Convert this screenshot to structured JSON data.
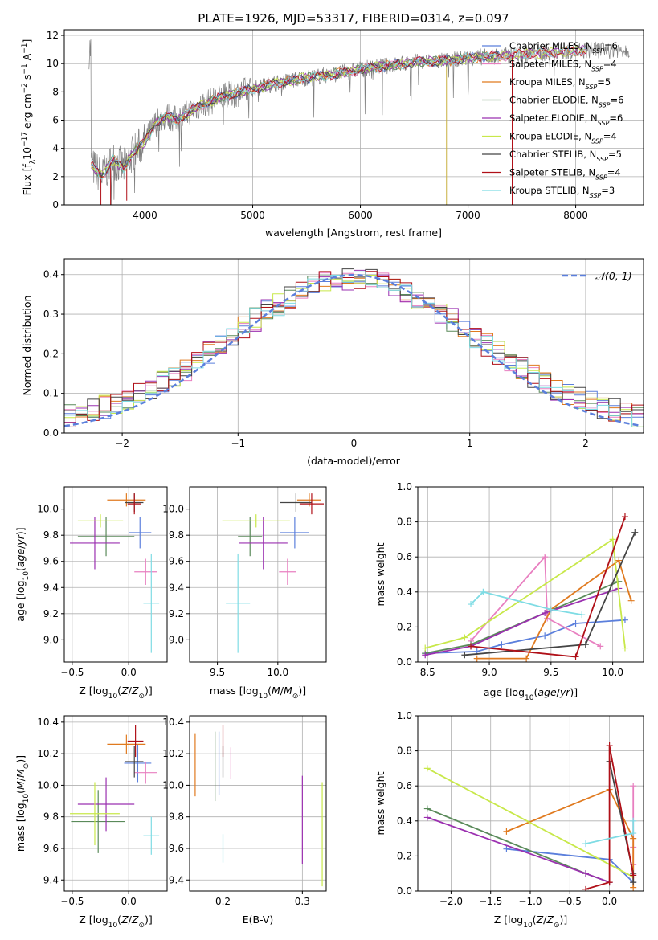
{
  "title": "PLATE=1926, MJD=53317, FIBERID=0314, z=0.097",
  "colors": {
    "Chabrier MILES": "#5b7fdc",
    "Salpeter MILES": "#e87fc0",
    "Kroupa MILES": "#e07a1f",
    "Chabrier ELODIE": "#5a8a5a",
    "Salpeter ELODIE": "#9b30b0",
    "Kroupa ELODIE": "#c8e84a",
    "Chabrier STELIB": "#444444",
    "Salpeter STELIB": "#b01018",
    "Kroupa STELIB": "#7fdce4",
    "data": "#808080",
    "gaussian": "#5b7fdc"
  },
  "chart_data": [
    {
      "id": "spectrum",
      "type": "line",
      "xlabel": "wavelength [Angstrom, rest frame]",
      "ylabel": "Flux [f",
      "xlim": [
        3250,
        8630
      ],
      "ylim": [
        0,
        12.4
      ],
      "xticks": [
        4000,
        5000,
        6000,
        7000,
        8000
      ],
      "yticks": [
        0,
        2,
        4,
        6,
        8,
        10,
        12
      ],
      "legend_position": "right",
      "legend": [
        {
          "name": "Chabrier MILES",
          "nssp": "6"
        },
        {
          "name": "Salpeter MILES",
          "nssp": "4"
        },
        {
          "name": "Kroupa MILES",
          "nssp": "5"
        },
        {
          "name": "Chabrier ELODIE",
          "nssp": "6"
        },
        {
          "name": "Salpeter ELODIE",
          "nssp": "6"
        },
        {
          "name": "Kroupa ELODIE",
          "nssp": "4"
        },
        {
          "name": "Chabrier STELIB",
          "nssp": "5"
        },
        {
          "name": "Salpeter STELIB",
          "nssp": "4"
        },
        {
          "name": "Kroupa STELIB",
          "nssp": "3"
        }
      ],
      "continuum": {
        "x": [
          3500,
          3600,
          3700,
          3800,
          3900,
          4000,
          4100,
          4200,
          4300,
          4500,
          4700,
          4900,
          5000,
          5200,
          5500,
          5800,
          6000,
          6300,
          6500,
          6800,
          7000,
          7200,
          7400,
          7600,
          7800,
          8000,
          8300,
          8500
        ],
        "y": [
          2.8,
          2.0,
          3.2,
          2.6,
          3.8,
          4.5,
          5.8,
          6.3,
          6.0,
          7.0,
          7.6,
          8.0,
          8.2,
          8.6,
          9.0,
          9.3,
          9.6,
          9.9,
          10.1,
          10.2,
          10.4,
          10.5,
          10.6,
          10.7,
          10.8,
          10.9,
          11.0,
          11.0
        ]
      }
    },
    {
      "id": "residuals",
      "type": "step",
      "xlabel": "(data-model)/error",
      "ylabel": "Normed distribution",
      "xlim": [
        -2.5,
        2.5
      ],
      "ylim": [
        0,
        0.44
      ],
      "xticks": [
        -2,
        -1,
        0,
        1,
        2
      ],
      "yticks": [
        0.0,
        0.1,
        0.2,
        0.3,
        0.4
      ],
      "legend_label": "𝒩(0, 1)",
      "legend_position": "top-right",
      "bin_width": 0.1
    },
    {
      "id": "age-vs-Z",
      "type": "errorbar",
      "xlabel": "Z [log",
      "ylabel": "age  [log",
      "xlim": [
        -0.57,
        0.34
      ],
      "ylim": [
        8.83,
        10.17
      ],
      "xticks": [
        -0.5,
        0.0
      ],
      "yticks": [
        9.0,
        9.2,
        9.4,
        9.6,
        9.8,
        10.0
      ],
      "points": [
        {
          "m": "Chabrier MILES",
          "x": 0.1,
          "xe": 0.1,
          "y": 9.82,
          "ye": 0.12
        },
        {
          "m": "Salpeter MILES",
          "x": 0.15,
          "xe": 0.1,
          "y": 9.52,
          "ye": 0.1
        },
        {
          "m": "Kroupa MILES",
          "x": -0.02,
          "xe": 0.17,
          "y": 10.07,
          "ye": 0.05
        },
        {
          "m": "Chabrier ELODIE",
          "x": -0.2,
          "xe": 0.25,
          "y": 9.79,
          "ye": 0.15
        },
        {
          "m": "Salpeter ELODIE",
          "x": -0.3,
          "xe": 0.22,
          "y": 9.74,
          "ye": 0.2
        },
        {
          "m": "Kroupa ELODIE",
          "x": -0.25,
          "xe": 0.2,
          "y": 9.91,
          "ye": 0.05
        },
        {
          "m": "Chabrier STELIB",
          "x": 0.05,
          "xe": 0.08,
          "y": 10.05,
          "ye": 0.07
        },
        {
          "m": "Salpeter STELIB",
          "x": 0.05,
          "xe": 0.06,
          "y": 10.04,
          "ye": 0.08
        },
        {
          "m": "Kroupa STELIB",
          "x": 0.2,
          "xe": 0.07,
          "y": 9.28,
          "ye": 0.38
        }
      ]
    },
    {
      "id": "age-vs-mass",
      "type": "errorbar",
      "xlabel": "mass [log",
      "ylabel": "",
      "xlim": [
        9.27,
        10.4
      ],
      "ylim": [
        8.83,
        10.17
      ],
      "xticks": [
        9.5,
        10.0
      ],
      "yticks": [
        9.0,
        9.2,
        9.4,
        9.6,
        9.8,
        10.0
      ],
      "points": [
        {
          "m": "Chabrier MILES",
          "x": 10.14,
          "xe": 0.12,
          "y": 9.82,
          "ye": 0.12
        },
        {
          "m": "Salpeter MILES",
          "x": 10.08,
          "xe": 0.07,
          "y": 9.52,
          "ye": 0.1
        },
        {
          "m": "Kroupa MILES",
          "x": 10.26,
          "xe": 0.1,
          "y": 10.07,
          "ye": 0.05
        },
        {
          "m": "Chabrier ELODIE",
          "x": 9.77,
          "xe": 0.1,
          "y": 9.79,
          "ye": 0.15
        },
        {
          "m": "Salpeter ELODIE",
          "x": 9.88,
          "xe": 0.2,
          "y": 9.74,
          "ye": 0.2
        },
        {
          "m": "Kroupa ELODIE",
          "x": 9.82,
          "xe": 0.28,
          "y": 9.91,
          "ye": 0.05
        },
        {
          "m": "Chabrier STELIB",
          "x": 10.15,
          "xe": 0.13,
          "y": 10.05,
          "ye": 0.07
        },
        {
          "m": "Salpeter STELIB",
          "x": 10.28,
          "xe": 0.1,
          "y": 10.04,
          "ye": 0.08
        },
        {
          "m": "Kroupa STELIB",
          "x": 9.67,
          "xe": 0.1,
          "y": 9.28,
          "ye": 0.38
        }
      ]
    },
    {
      "id": "mass-weight-vs-age",
      "type": "line",
      "xlabel": "age  [log",
      "ylabel": "mass weight",
      "xlim": [
        8.42,
        10.25
      ],
      "ylim": [
        0,
        1.0
      ],
      "xticks": [
        8.5,
        9.0,
        9.5,
        10.0
      ],
      "yticks": [
        0.0,
        0.2,
        0.4,
        0.6,
        0.8,
        1.0
      ],
      "series": [
        {
          "m": "Chabrier MILES",
          "x": [
            8.48,
            8.9,
            9.1,
            9.45,
            9.7,
            10.1
          ],
          "y": [
            0.05,
            0.06,
            0.1,
            0.15,
            0.22,
            0.24
          ]
        },
        {
          "m": "Salpeter MILES",
          "x": [
            8.85,
            9.45,
            9.47,
            9.9
          ],
          "y": [
            0.12,
            0.6,
            0.25,
            0.09
          ]
        },
        {
          "m": "Kroupa MILES",
          "x": [
            8.9,
            9.3,
            9.5,
            10.05,
            10.15
          ],
          "y": [
            0.02,
            0.02,
            0.3,
            0.58,
            0.35
          ]
        },
        {
          "m": "Chabrier ELODIE",
          "x": [
            8.48,
            8.85,
            10.05
          ],
          "y": [
            0.05,
            0.1,
            0.46
          ]
        },
        {
          "m": "Salpeter ELODIE",
          "x": [
            8.48,
            8.85,
            9.45,
            10.05
          ],
          "y": [
            0.04,
            0.09,
            0.28,
            0.42
          ]
        },
        {
          "m": "Kroupa ELODIE",
          "x": [
            8.48,
            8.8,
            10.0,
            10.1
          ],
          "y": [
            0.08,
            0.14,
            0.7,
            0.08
          ]
        },
        {
          "m": "Chabrier STELIB",
          "x": [
            8.8,
            9.78,
            10.18
          ],
          "y": [
            0.04,
            0.1,
            0.74
          ]
        },
        {
          "m": "Salpeter STELIB",
          "x": [
            8.85,
            9.7,
            10.1
          ],
          "y": [
            0.09,
            0.03,
            0.83
          ]
        },
        {
          "m": "Kroupa STELIB",
          "x": [
            8.85,
            8.95,
            9.5,
            9.75
          ],
          "y": [
            0.33,
            0.4,
            0.3,
            0.27
          ]
        }
      ]
    },
    {
      "id": "mass-vs-Z",
      "type": "errorbar",
      "xlabel": "Z [log",
      "ylabel": "mass [log",
      "xlim": [
        -0.57,
        0.34
      ],
      "ylim": [
        9.33,
        10.44
      ],
      "xticks": [
        -0.5,
        0.0
      ],
      "yticks": [
        9.4,
        9.6,
        9.8,
        10.0,
        10.2,
        10.4
      ],
      "points": [
        {
          "m": "Chabrier MILES",
          "x": 0.08,
          "xe": 0.12,
          "y": 10.14,
          "ye": 0.12
        },
        {
          "m": "Salpeter MILES",
          "x": 0.15,
          "xe": 0.1,
          "y": 10.08,
          "ye": 0.07
        },
        {
          "m": "Kroupa MILES",
          "x": -0.02,
          "xe": 0.17,
          "y": 10.26,
          "ye": 0.06
        },
        {
          "m": "Chabrier ELODIE",
          "x": -0.27,
          "xe": 0.24,
          "y": 9.77,
          "ye": 0.2
        },
        {
          "m": "Salpeter ELODIE",
          "x": -0.2,
          "xe": 0.25,
          "y": 9.88,
          "ye": 0.17
        },
        {
          "m": "Kroupa ELODIE",
          "x": -0.3,
          "xe": 0.22,
          "y": 9.82,
          "ye": 0.2
        },
        {
          "m": "Chabrier STELIB",
          "x": 0.05,
          "xe": 0.08,
          "y": 10.15,
          "ye": 0.1
        },
        {
          "m": "Salpeter STELIB",
          "x": 0.06,
          "xe": 0.07,
          "y": 10.28,
          "ye": 0.1
        },
        {
          "m": "Kroupa STELIB",
          "x": 0.2,
          "xe": 0.07,
          "y": 9.68,
          "ye": 0.12
        }
      ]
    },
    {
      "id": "mass-vs-EBV",
      "type": "errorbar",
      "xlabel": "E(B-V)",
      "ylabel": "",
      "xlim": [
        0.158,
        0.33
      ],
      "ylim": [
        9.33,
        10.44
      ],
      "xticks": [
        0.2,
        0.3
      ],
      "yticks": [
        9.4,
        9.6,
        9.8,
        10.0,
        10.2,
        10.4
      ],
      "points": [
        {
          "m": "Chabrier MILES",
          "x": 0.195,
          "xe": 0,
          "y": 10.14,
          "ye": 0.2
        },
        {
          "m": "Salpeter MILES",
          "x": 0.21,
          "xe": 0,
          "y": 10.14,
          "ye": 0.1
        },
        {
          "m": "Kroupa MILES",
          "x": 0.165,
          "xe": 0,
          "y": 10.13,
          "ye": 0.2
        },
        {
          "m": "Chabrier ELODIE",
          "x": 0.19,
          "xe": 0,
          "y": 10.12,
          "ye": 0.22
        },
        {
          "m": "Salpeter ELODIE",
          "x": 0.3,
          "xe": 0,
          "y": 9.78,
          "ye": 0.28
        },
        {
          "m": "Kroupa ELODIE",
          "x": 0.325,
          "xe": 0,
          "y": 9.69,
          "ye": 0.33
        },
        {
          "m": "Chabrier STELIB",
          "x": 0.2,
          "xe": 0,
          "y": 10.15,
          "ye": 0.1
        },
        {
          "m": "Salpeter STELIB",
          "x": 0.2,
          "xe": 0,
          "y": 10.28,
          "ye": 0.1
        },
        {
          "m": "Kroupa STELIB",
          "x": 0.2,
          "xe": 0,
          "y": 9.6,
          "ye": 0.09
        }
      ]
    },
    {
      "id": "mass-weight-vs-Z",
      "type": "line",
      "xlabel": "Z [log",
      "ylabel": "mass weight",
      "xlim": [
        -2.42,
        0.43
      ],
      "ylim": [
        0,
        1.0
      ],
      "xticks": [
        -2.0,
        -1.5,
        -1.0,
        -0.5,
        0.0
      ],
      "yticks": [
        0.0,
        0.2,
        0.4,
        0.6,
        0.8,
        1.0
      ],
      "series": [
        {
          "m": "Chabrier MILES",
          "x": [
            -1.3,
            0.0,
            0.3
          ],
          "y": [
            0.24,
            0.18,
            0.05
          ]
        },
        {
          "m": "Salpeter MILES",
          "x": [
            0.3,
            0.3,
            0.3,
            0.3
          ],
          "y": [
            0.6,
            0.25,
            0.15,
            0.09
          ]
        },
        {
          "m": "Kroupa MILES",
          "x": [
            -1.3,
            0.0,
            0.3,
            0.3
          ],
          "y": [
            0.34,
            0.58,
            0.3,
            0.02
          ]
        },
        {
          "m": "Chabrier ELODIE",
          "x": [
            -2.3,
            -0.3,
            0.0
          ],
          "y": [
            0.47,
            0.1,
            0.05
          ]
        },
        {
          "m": "Salpeter ELODIE",
          "x": [
            -2.3,
            -0.3,
            0.0
          ],
          "y": [
            0.42,
            0.1,
            0.05
          ]
        },
        {
          "m": "Kroupa ELODIE",
          "x": [
            -2.3,
            0.3
          ],
          "y": [
            0.7,
            0.08
          ]
        },
        {
          "m": "Chabrier STELIB",
          "x": [
            0.0,
            0.3,
            0.3
          ],
          "y": [
            0.74,
            0.1,
            0.05
          ]
        },
        {
          "m": "Salpeter STELIB",
          "x": [
            -0.3,
            0.0,
            0.0,
            0.3
          ],
          "y": [
            0.01,
            0.05,
            0.83,
            0.09
          ]
        },
        {
          "m": "Kroupa STELIB",
          "x": [
            -0.3,
            0.3,
            0.3
          ],
          "y": [
            0.27,
            0.33,
            0.4
          ]
        }
      ]
    }
  ]
}
